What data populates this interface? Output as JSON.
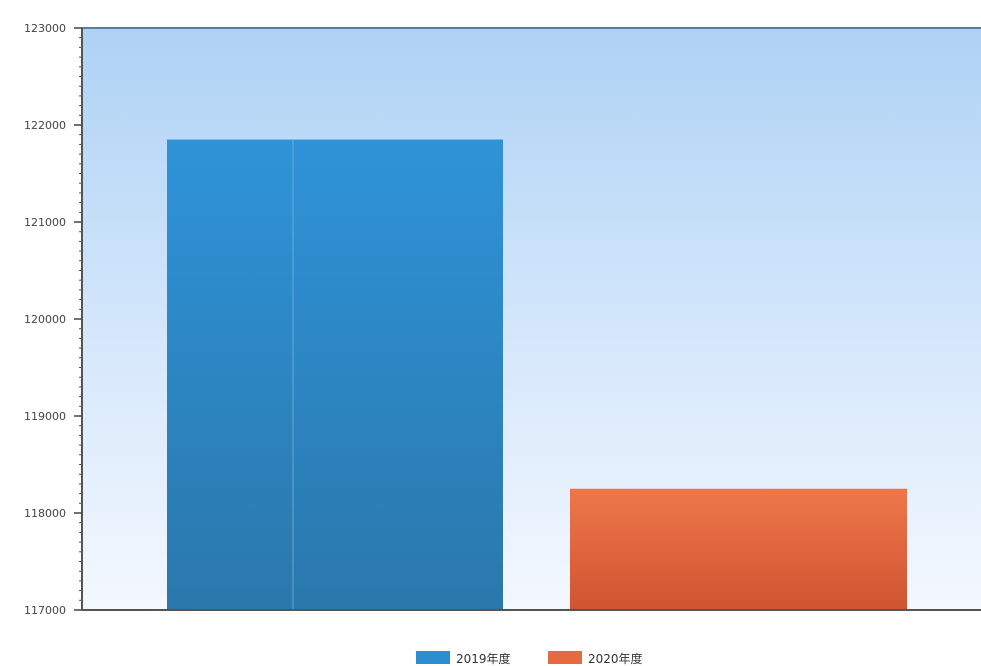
{
  "chart_data": {
    "type": "bar",
    "title": "",
    "xlabel": "",
    "ylabel": "",
    "ylim": [
      117000,
      123000
    ],
    "yticks": [
      117000,
      118000,
      119000,
      120000,
      121000,
      122000,
      123000
    ],
    "grid": false,
    "legend_position": "bottom-center",
    "series": [
      {
        "name": "2019年度",
        "values": [
          121850
        ],
        "color": "#2c8ecf"
      },
      {
        "name": "2020年度",
        "values": [
          118250
        ],
        "color": "#e56a3f"
      }
    ]
  }
}
